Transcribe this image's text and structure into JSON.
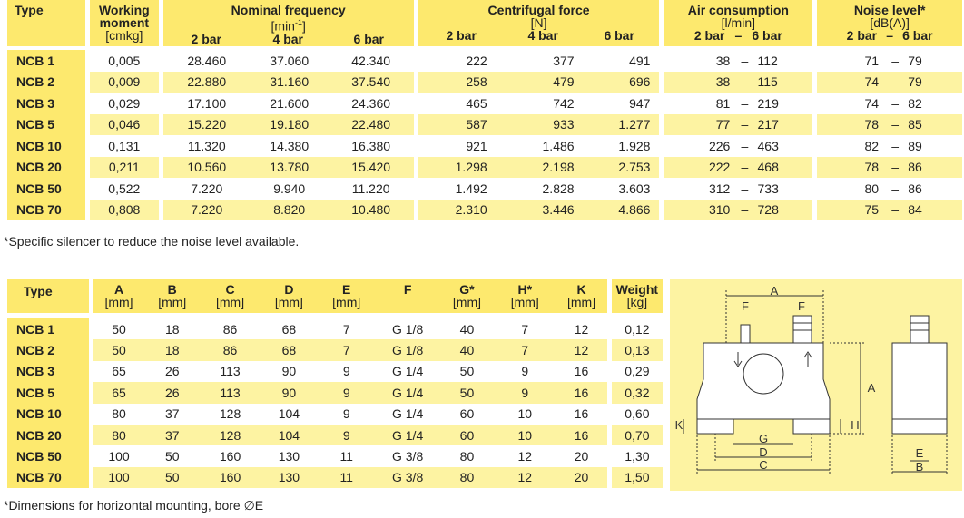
{
  "table1": {
    "h_type": "Type",
    "h_moment1": "Working",
    "h_moment2": "moment",
    "h_moment_unit": "[cmkg]",
    "h_freq": "Nominal frequency",
    "h_freq_unit_pre": "[min",
    "h_freq_unit_sup": "-1",
    "h_freq_unit_post": "]",
    "h_force": "Centrifugal force",
    "h_force_unit": "[N]",
    "h_air": "Air consumption",
    "h_air_unit": "[l/min]",
    "h_noise": "Noise level*",
    "h_noise_unit": "[dB(A)]",
    "bar2": "2 bar",
    "bar4": "4 bar",
    "bar6": "6 bar",
    "dash": "–",
    "rows": [
      {
        "type": "NCB 1",
        "moment": "0,005",
        "f2": "28.460",
        "f4": "37.060",
        "f6": "42.340",
        "c2": "222",
        "c4": "377",
        "c6": "491",
        "a2": "38",
        "a6": "112",
        "n2": "71",
        "n6": "79"
      },
      {
        "type": "NCB 2",
        "moment": "0,009",
        "f2": "22.880",
        "f4": "31.160",
        "f6": "37.540",
        "c2": "258",
        "c4": "479",
        "c6": "696",
        "a2": "38",
        "a6": "115",
        "n2": "74",
        "n6": "79"
      },
      {
        "type": "NCB 3",
        "moment": "0,029",
        "f2": "17.100",
        "f4": "21.600",
        "f6": "24.360",
        "c2": "465",
        "c4": "742",
        "c6": "947",
        "a2": "81",
        "a6": "219",
        "n2": "74",
        "n6": "82"
      },
      {
        "type": "NCB 5",
        "moment": "0,046",
        "f2": "15.220",
        "f4": "19.180",
        "f6": "22.480",
        "c2": "587",
        "c4": "933",
        "c6": "1.277",
        "a2": "77",
        "a6": "217",
        "n2": "78",
        "n6": "85"
      },
      {
        "type": "NCB 10",
        "moment": "0,131",
        "f2": "11.320",
        "f4": "14.380",
        "f6": "16.380",
        "c2": "921",
        "c4": "1.486",
        "c6": "1.928",
        "a2": "226",
        "a6": "463",
        "n2": "82",
        "n6": "89"
      },
      {
        "type": "NCB 20",
        "moment": "0,211",
        "f2": "10.560",
        "f4": "13.780",
        "f6": "15.420",
        "c2": "1.298",
        "c4": "2.198",
        "c6": "2.753",
        "a2": "222",
        "a6": "468",
        "n2": "78",
        "n6": "86"
      },
      {
        "type": "NCB 50",
        "moment": "0,522",
        "f2": "7.220",
        "f4": "9.940",
        "f6": "11.220",
        "c2": "1.492",
        "c4": "2.828",
        "c6": "3.603",
        "a2": "312",
        "a6": "733",
        "n2": "80",
        "n6": "86"
      },
      {
        "type": "NCB 70",
        "moment": "0,808",
        "f2": "7.220",
        "f4": "8.820",
        "f6": "10.480",
        "c2": "2.310",
        "c4": "3.446",
        "c6": "4.866",
        "a2": "310",
        "a6": "728",
        "n2": "75",
        "n6": "84"
      }
    ]
  },
  "note1": "*Specific silencer to reduce the noise level available.",
  "table2": {
    "h_type": "Type",
    "h_a": "A",
    "h_b": "B",
    "h_c": "C",
    "h_d": "D",
    "h_e": "E",
    "h_f": "F",
    "h_g": "G*",
    "h_h": "H*",
    "h_k": "K",
    "h_weight": "Weight",
    "mm": "[mm]",
    "kg": "[kg]",
    "rows": [
      {
        "type": "NCB 1",
        "a": "50",
        "b": "18",
        "c": "86",
        "d": "68",
        "e": "7",
        "f": "G 1/8",
        "g": "40",
        "h": "7",
        "k": "12",
        "w": "0,12"
      },
      {
        "type": "NCB 2",
        "a": "50",
        "b": "18",
        "c": "86",
        "d": "68",
        "e": "7",
        "f": "G 1/8",
        "g": "40",
        "h": "7",
        "k": "12",
        "w": "0,13"
      },
      {
        "type": "NCB 3",
        "a": "65",
        "b": "26",
        "c": "113",
        "d": "90",
        "e": "9",
        "f": "G 1/4",
        "g": "50",
        "h": "9",
        "k": "16",
        "w": "0,29"
      },
      {
        "type": "NCB 5",
        "a": "65",
        "b": "26",
        "c": "113",
        "d": "90",
        "e": "9",
        "f": "G 1/4",
        "g": "50",
        "h": "9",
        "k": "16",
        "w": "0,32"
      },
      {
        "type": "NCB 10",
        "a": "80",
        "b": "37",
        "c": "128",
        "d": "104",
        "e": "9",
        "f": "G 1/4",
        "g": "60",
        "h": "10",
        "k": "16",
        "w": "0,60"
      },
      {
        "type": "NCB 20",
        "a": "80",
        "b": "37",
        "c": "128",
        "d": "104",
        "e": "9",
        "f": "G 1/4",
        "g": "60",
        "h": "10",
        "k": "16",
        "w": "0,70"
      },
      {
        "type": "NCB 50",
        "a": "100",
        "b": "50",
        "c": "160",
        "d": "130",
        "e": "11",
        "f": "G 3/8",
        "g": "80",
        "h": "12",
        "k": "20",
        "w": "1,30"
      },
      {
        "type": "NCB 70",
        "a": "100",
        "b": "50",
        "c": "160",
        "d": "130",
        "e": "11",
        "f": "G 3/8",
        "g": "80",
        "h": "12",
        "k": "20",
        "w": "1,50"
      }
    ]
  },
  "note2": "*Dimensions for horizontal mounting, bore ∅E",
  "diagram": {
    "labels": {
      "a": "A",
      "f1": "F",
      "f2": "F",
      "c": "C",
      "d": "D",
      "g": "G",
      "h": "H",
      "k": "K",
      "a_side": "A",
      "e": "E",
      "b": "B"
    }
  },
  "colors": {
    "yellow_light": "#fdf3a2",
    "yellow_header": "#fde96e",
    "yellow_line": "#f1d31e"
  }
}
